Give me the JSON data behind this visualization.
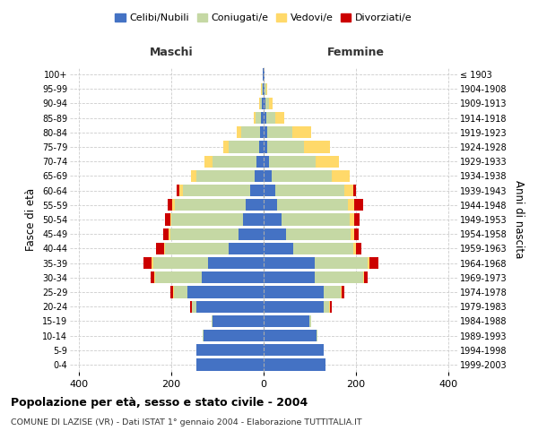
{
  "age_groups": [
    "0-4",
    "5-9",
    "10-14",
    "15-19",
    "20-24",
    "25-29",
    "30-34",
    "35-39",
    "40-44",
    "45-49",
    "50-54",
    "55-59",
    "60-64",
    "65-69",
    "70-74",
    "75-79",
    "80-84",
    "85-89",
    "90-94",
    "95-99",
    "100+"
  ],
  "birth_years": [
    "1999-2003",
    "1994-1998",
    "1989-1993",
    "1984-1988",
    "1979-1983",
    "1974-1978",
    "1969-1973",
    "1964-1968",
    "1959-1963",
    "1954-1958",
    "1949-1953",
    "1944-1948",
    "1939-1943",
    "1934-1938",
    "1929-1933",
    "1924-1928",
    "1919-1923",
    "1914-1918",
    "1909-1913",
    "1904-1908",
    "≤ 1903"
  ],
  "male_celibi": [
    145,
    145,
    130,
    110,
    145,
    165,
    135,
    120,
    75,
    55,
    45,
    38,
    30,
    20,
    15,
    10,
    8,
    5,
    3,
    2,
    1
  ],
  "male_coniugati": [
    0,
    1,
    2,
    3,
    10,
    30,
    100,
    120,
    138,
    148,
    155,
    155,
    145,
    125,
    95,
    65,
    40,
    12,
    5,
    2,
    0
  ],
  "male_vedovi": [
    0,
    0,
    0,
    0,
    1,
    2,
    2,
    3,
    3,
    3,
    3,
    5,
    8,
    12,
    18,
    12,
    10,
    5,
    2,
    1,
    0
  ],
  "male_divorziati": [
    0,
    0,
    0,
    0,
    3,
    5,
    8,
    18,
    18,
    12,
    10,
    10,
    5,
    0,
    0,
    0,
    0,
    0,
    0,
    0,
    0
  ],
  "female_celibi": [
    135,
    130,
    115,
    100,
    130,
    130,
    110,
    110,
    65,
    48,
    38,
    30,
    25,
    18,
    12,
    8,
    8,
    5,
    3,
    2,
    1
  ],
  "female_coniugati": [
    0,
    1,
    2,
    4,
    12,
    38,
    105,
    115,
    130,
    140,
    148,
    152,
    150,
    130,
    100,
    80,
    55,
    20,
    8,
    3,
    0
  ],
  "female_vedovi": [
    0,
    0,
    0,
    0,
    2,
    2,
    3,
    5,
    5,
    8,
    10,
    15,
    20,
    38,
    52,
    55,
    40,
    20,
    8,
    2,
    0
  ],
  "female_divorziati": [
    0,
    0,
    0,
    0,
    3,
    5,
    8,
    18,
    12,
    10,
    12,
    18,
    5,
    0,
    0,
    0,
    0,
    0,
    0,
    0,
    0
  ],
  "colors": {
    "celibi": "#4472C4",
    "coniugati": "#C5D8A4",
    "vedovi": "#FFD96A",
    "divorziati": "#CC0000"
  },
  "xlim": 420,
  "title": "Popolazione per età, sesso e stato civile - 2004",
  "subtitle": "COMUNE DI LAZISE (VR) - Dati ISTAT 1° gennaio 2004 - Elaborazione TUTTITALIA.IT",
  "ylabel_left": "Fasce di età",
  "ylabel_right": "Anni di nascita",
  "xlabel_left": "Maschi",
  "xlabel_right": "Femmine"
}
